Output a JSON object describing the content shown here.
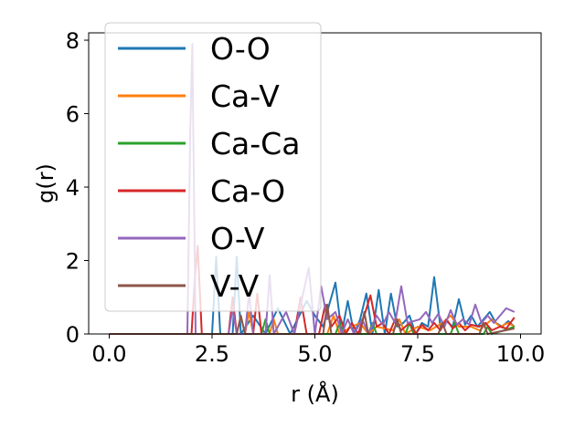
{
  "chart_data": {
    "type": "line",
    "title": "",
    "xlabel": "r (Å)",
    "ylabel": "g(r)",
    "xlim": [
      -0.5,
      10.5
    ],
    "ylim": [
      0,
      8.2
    ],
    "xticks": [
      0.0,
      2.5,
      5.0,
      7.5,
      10.0
    ],
    "xtick_labels": [
      "0.0",
      "2.5",
      "5.0",
      "7.5",
      "10.0"
    ],
    "yticks": [
      0,
      2,
      4,
      6,
      8
    ],
    "ytick_labels": [
      "0",
      "2",
      "4",
      "6",
      "8"
    ],
    "grid": false,
    "legend_position": "top-left",
    "series": [
      {
        "name": "O-O",
        "color": "#1f77b4",
        "points": [
          [
            0,
            0
          ],
          [
            2.5,
            0
          ],
          [
            2.6,
            2.1
          ],
          [
            2.7,
            0
          ],
          [
            3.0,
            0
          ],
          [
            3.1,
            2.1
          ],
          [
            3.2,
            0
          ],
          [
            3.5,
            0.5
          ],
          [
            3.8,
            0
          ],
          [
            4.1,
            0.7
          ],
          [
            4.4,
            0
          ],
          [
            4.8,
            0.9
          ],
          [
            5.0,
            0.5
          ],
          [
            5.2,
            0.2
          ],
          [
            5.35,
            0.8
          ],
          [
            5.5,
            1.4
          ],
          [
            5.65,
            0
          ],
          [
            5.8,
            0.9
          ],
          [
            5.95,
            0
          ],
          [
            6.1,
            0.4
          ],
          [
            6.25,
            1.1
          ],
          [
            6.4,
            0
          ],
          [
            6.55,
            1.2
          ],
          [
            6.7,
            0
          ],
          [
            6.85,
            1.1
          ],
          [
            7.0,
            0.2
          ],
          [
            7.15,
            0.3
          ],
          [
            7.3,
            0.5
          ],
          [
            7.45,
            0
          ],
          [
            7.6,
            0.3
          ],
          [
            7.75,
            0.2
          ],
          [
            7.9,
            1.55
          ],
          [
            8.05,
            0.2
          ],
          [
            8.2,
            0.35
          ],
          [
            8.35,
            0.2
          ],
          [
            8.5,
            0.95
          ],
          [
            8.65,
            0.25
          ],
          [
            8.8,
            0.5
          ],
          [
            8.95,
            0.2
          ],
          [
            9.1,
            0.4
          ],
          [
            9.25,
            0.6
          ],
          [
            9.4,
            0.3
          ],
          [
            9.55,
            0.2
          ],
          [
            9.7,
            0.35
          ],
          [
            9.85,
            0.2
          ]
        ]
      },
      {
        "name": "Ca-V",
        "color": "#ff7f0e",
        "points": [
          [
            0,
            0
          ],
          [
            3.3,
            0
          ],
          [
            3.4,
            0.6
          ],
          [
            3.5,
            0
          ],
          [
            3.9,
            0
          ],
          [
            4.0,
            0.4
          ],
          [
            4.1,
            0
          ],
          [
            5.3,
            0
          ],
          [
            5.45,
            0.5
          ],
          [
            5.6,
            0
          ],
          [
            5.9,
            0.2
          ],
          [
            6.1,
            0.3
          ],
          [
            6.3,
            0
          ],
          [
            6.5,
            0.2
          ],
          [
            6.9,
            0.1
          ],
          [
            7.05,
            0.4
          ],
          [
            7.2,
            0
          ],
          [
            7.5,
            0.2
          ],
          [
            7.8,
            0.1
          ],
          [
            8.1,
            0.3
          ],
          [
            8.3,
            0.5
          ],
          [
            8.5,
            0.2
          ],
          [
            8.8,
            0.2
          ],
          [
            9.0,
            0.1
          ],
          [
            9.3,
            0.4
          ],
          [
            9.5,
            0.2
          ],
          [
            9.7,
            0.3
          ],
          [
            9.85,
            0.2
          ]
        ]
      },
      {
        "name": "Ca-Ca",
        "color": "#2ca02c",
        "points": [
          [
            0,
            0
          ],
          [
            3.7,
            0
          ],
          [
            3.8,
            0.4
          ],
          [
            3.9,
            0
          ],
          [
            5.5,
            0
          ],
          [
            5.6,
            0.3
          ],
          [
            5.7,
            0
          ],
          [
            6.3,
            0
          ],
          [
            6.4,
            0.3
          ],
          [
            6.5,
            0
          ],
          [
            7.2,
            0
          ],
          [
            7.3,
            0.3
          ],
          [
            7.4,
            0
          ],
          [
            8.3,
            0
          ],
          [
            8.4,
            0.3
          ],
          [
            8.5,
            0
          ],
          [
            9.1,
            0
          ],
          [
            9.2,
            0.2
          ],
          [
            9.3,
            0
          ],
          [
            9.6,
            0.1
          ],
          [
            9.85,
            0.2
          ]
        ]
      },
      {
        "name": "Ca-O",
        "color": "#d62728",
        "points": [
          [
            0,
            0
          ],
          [
            2.0,
            0
          ],
          [
            2.08,
            1.5
          ],
          [
            2.15,
            2.4
          ],
          [
            2.25,
            0
          ],
          [
            2.9,
            0
          ],
          [
            3.0,
            1.0
          ],
          [
            3.1,
            0
          ],
          [
            3.5,
            0
          ],
          [
            3.6,
            1.1
          ],
          [
            3.7,
            0
          ],
          [
            4.5,
            0
          ],
          [
            4.65,
            1.0
          ],
          [
            4.8,
            0
          ],
          [
            5.1,
            0
          ],
          [
            5.25,
            0.8
          ],
          [
            5.4,
            0.2
          ],
          [
            5.6,
            0.5
          ],
          [
            5.75,
            0
          ],
          [
            5.9,
            0.3
          ],
          [
            6.05,
            0
          ],
          [
            6.2,
            0.5
          ],
          [
            6.35,
            1.05
          ],
          [
            6.5,
            0.2
          ],
          [
            6.65,
            0.3
          ],
          [
            6.8,
            0
          ],
          [
            6.95,
            0.4
          ],
          [
            7.1,
            0.1
          ],
          [
            7.3,
            0.3
          ],
          [
            7.45,
            0
          ],
          [
            7.6,
            0.25
          ],
          [
            7.75,
            0.1
          ],
          [
            7.9,
            0.3
          ],
          [
            8.05,
            0.1
          ],
          [
            8.2,
            0.4
          ],
          [
            8.35,
            0.15
          ],
          [
            8.5,
            0.3
          ],
          [
            8.65,
            0.1
          ],
          [
            8.8,
            0.25
          ],
          [
            9.0,
            0.2
          ],
          [
            9.15,
            0.3
          ],
          [
            9.3,
            0.1
          ],
          [
            9.5,
            0.2
          ],
          [
            9.65,
            0.15
          ],
          [
            9.85,
            0.45
          ]
        ]
      },
      {
        "name": "O-V",
        "color": "#9467bd",
        "points": [
          [
            0,
            0
          ],
          [
            1.9,
            0
          ],
          [
            1.97,
            5.5
          ],
          [
            2.02,
            7.9
          ],
          [
            2.1,
            0
          ],
          [
            2.9,
            0
          ],
          [
            3.0,
            0.7
          ],
          [
            3.1,
            0
          ],
          [
            3.3,
            0
          ],
          [
            3.4,
            1.1
          ],
          [
            3.5,
            0
          ],
          [
            3.8,
            0
          ],
          [
            3.9,
            1.6
          ],
          [
            4.0,
            0
          ],
          [
            4.3,
            0.6
          ],
          [
            4.5,
            0
          ],
          [
            4.85,
            1.8
          ],
          [
            5.0,
            0
          ],
          [
            5.15,
            1.3
          ],
          [
            5.3,
            0.4
          ],
          [
            5.5,
            0.6
          ],
          [
            5.65,
            0
          ],
          [
            5.8,
            0.4
          ],
          [
            5.95,
            0
          ],
          [
            6.15,
            0.4
          ],
          [
            6.3,
            0
          ],
          [
            6.5,
            0.5
          ],
          [
            6.65,
            0.25
          ],
          [
            6.8,
            0.6
          ],
          [
            6.95,
            0.3
          ],
          [
            7.1,
            1.3
          ],
          [
            7.25,
            0.3
          ],
          [
            7.4,
            0.35
          ],
          [
            7.55,
            0.4
          ],
          [
            7.7,
            0.6
          ],
          [
            7.85,
            0.3
          ],
          [
            8.0,
            0.55
          ],
          [
            8.15,
            0.2
          ],
          [
            8.3,
            0.65
          ],
          [
            8.45,
            0.25
          ],
          [
            8.6,
            0.4
          ],
          [
            8.75,
            0.25
          ],
          [
            8.9,
            0.8
          ],
          [
            9.05,
            0.3
          ],
          [
            9.2,
            0.5
          ],
          [
            9.35,
            0.3
          ],
          [
            9.5,
            0.5
          ],
          [
            9.65,
            0.7
          ],
          [
            9.85,
            0.6
          ]
        ]
      },
      {
        "name": "V-V",
        "color": "#8c564b",
        "points": [
          [
            0,
            0
          ],
          [
            3.1,
            0
          ],
          [
            3.2,
            0.5
          ],
          [
            3.3,
            0
          ],
          [
            5.2,
            0
          ],
          [
            5.3,
            0.8
          ],
          [
            5.4,
            0
          ],
          [
            6.1,
            0
          ],
          [
            6.2,
            0.6
          ],
          [
            6.3,
            0
          ],
          [
            6.9,
            0
          ],
          [
            7.0,
            0.4
          ],
          [
            7.1,
            0
          ],
          [
            8.0,
            0
          ],
          [
            8.1,
            0.3
          ],
          [
            8.2,
            0
          ],
          [
            9.0,
            0
          ],
          [
            9.1,
            0.3
          ],
          [
            9.2,
            0
          ],
          [
            9.85,
            0.15
          ]
        ]
      }
    ]
  }
}
